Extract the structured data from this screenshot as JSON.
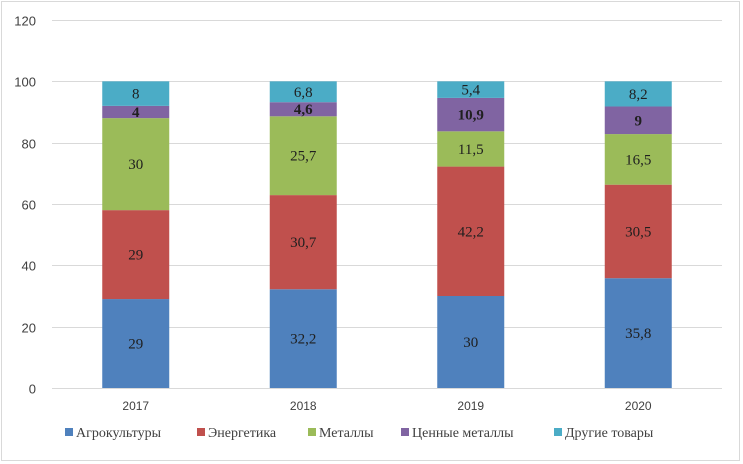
{
  "chart_data": {
    "type": "bar",
    "stacked": true,
    "categories": [
      "2017",
      "2018",
      "2019",
      "2020"
    ],
    "series": [
      {
        "name": "Агрокультуры",
        "color": "#4f81bd",
        "values": [
          29,
          32.2,
          30,
          35.8
        ],
        "labels": [
          "29",
          "32,2",
          "30",
          "35,8"
        ]
      },
      {
        "name": "Энергетика",
        "color": "#c0504d",
        "values": [
          29,
          30.7,
          42.2,
          30.5
        ],
        "labels": [
          "29",
          "30,7",
          "42,2",
          "30,5"
        ]
      },
      {
        "name": "Металлы",
        "color": "#9bbb59",
        "values": [
          30,
          25.7,
          11.5,
          16.5
        ],
        "labels": [
          "30",
          "25,7",
          "11,5",
          "16,5"
        ]
      },
      {
        "name": "Ценные металлы",
        "color": "#8064a2",
        "values": [
          4,
          4.6,
          10.9,
          9
        ],
        "labels": [
          "4",
          "4,6",
          "10,9",
          "9"
        ]
      },
      {
        "name": "Другие товары",
        "color": "#4bacc6",
        "values": [
          8,
          6.8,
          5.4,
          8.2
        ],
        "labels": [
          "8",
          "6,8",
          "5,4",
          "8,2"
        ]
      }
    ],
    "ylim": [
      0,
      120
    ],
    "yticks": [
      0,
      20,
      40,
      60,
      80,
      100,
      120
    ],
    "title": "",
    "xlabel": "",
    "ylabel": "",
    "grid": true,
    "legend": "bottom"
  }
}
